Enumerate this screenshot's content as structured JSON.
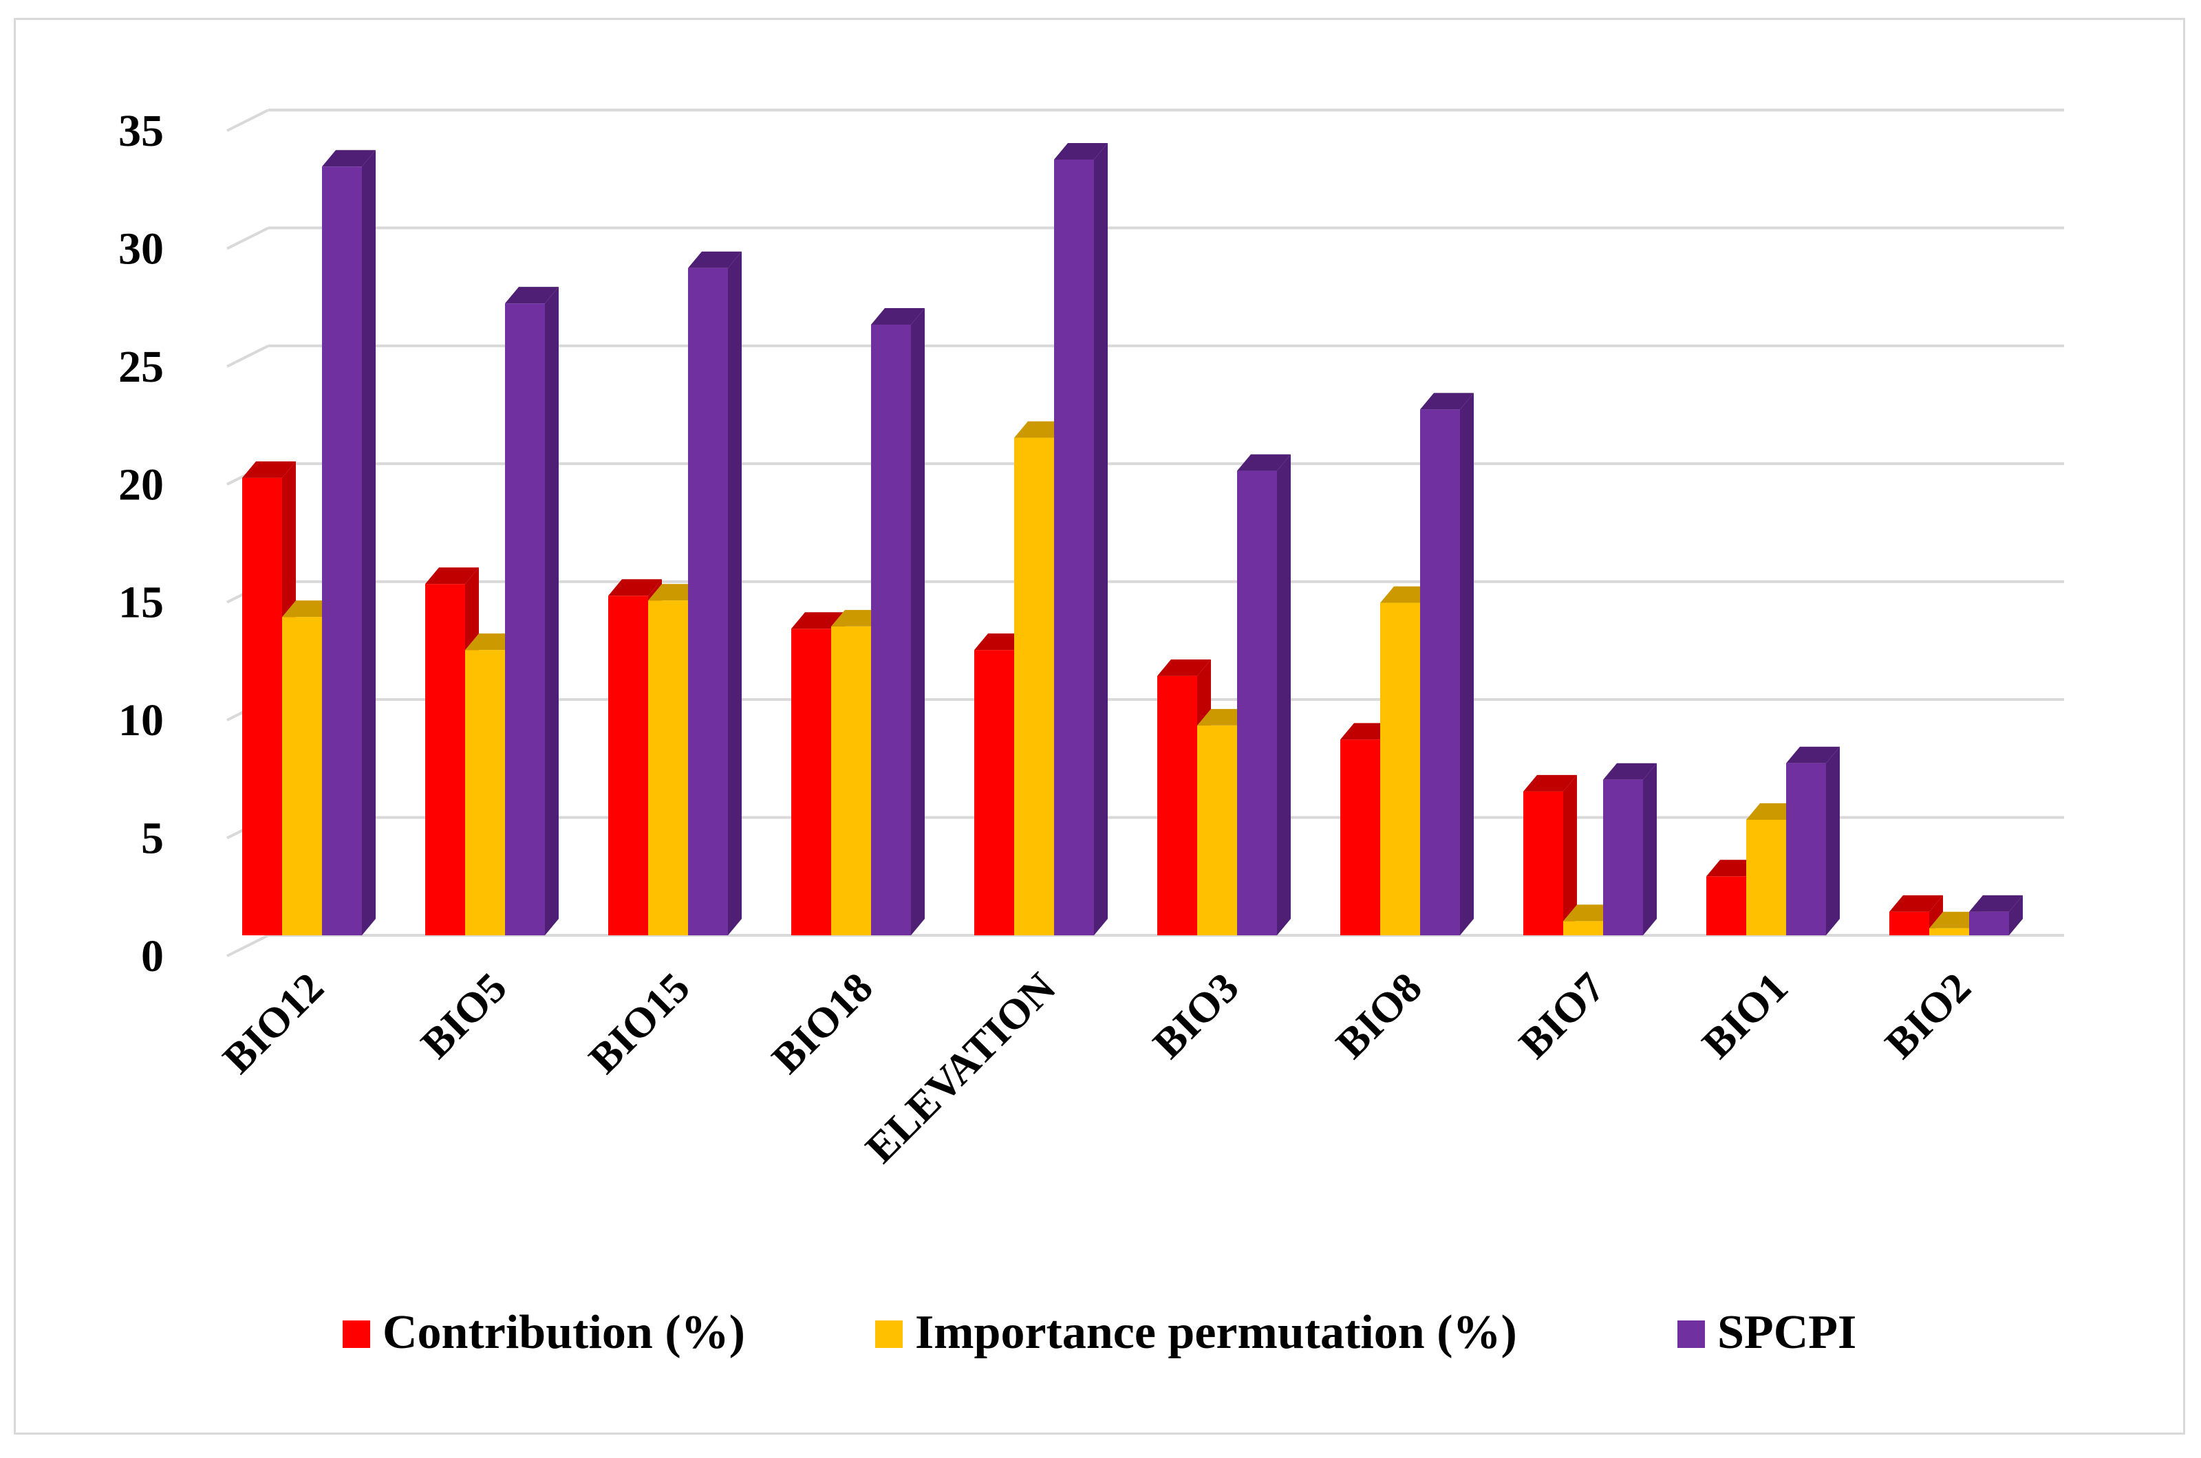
{
  "chart_data": {
    "type": "bar",
    "title": "",
    "xlabel": "",
    "ylabel": "",
    "ylim": [
      0,
      35
    ],
    "yticks": [
      0,
      5,
      10,
      15,
      20,
      25,
      30,
      35
    ],
    "grid": true,
    "legend_position": "bottom",
    "categories": [
      "BIO12",
      "BIO5",
      "BIO15",
      "BIO18",
      "ELEVATION",
      "BIO3",
      "BIO8",
      "BIO7",
      "BIO1",
      "BIO2"
    ],
    "series": [
      {
        "name": "Contribution (%)",
        "color": "#ff0000",
        "shade": "#c00000",
        "values": [
          19.4,
          14.9,
          14.4,
          13.0,
          12.1,
          11.0,
          8.3,
          6.1,
          2.5,
          1.0
        ]
      },
      {
        "name": "Importance permutation (%)",
        "color": "#ffc000",
        "shade": "#cc9a00",
        "values": [
          13.5,
          12.1,
          14.2,
          13.1,
          21.1,
          8.9,
          14.1,
          0.6,
          4.9,
          0.3
        ]
      },
      {
        "name": "SPCPI",
        "color": "#7030a0",
        "shade": "#4f1f75",
        "values": [
          32.6,
          26.8,
          28.3,
          25.9,
          32.9,
          19.7,
          22.3,
          6.6,
          7.3,
          1.0
        ]
      }
    ]
  }
}
